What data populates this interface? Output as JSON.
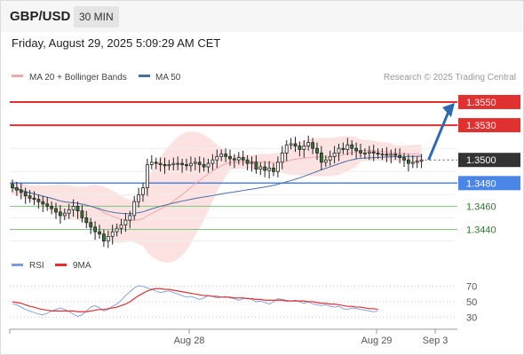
{
  "header": {
    "symbol": "GBP/USD",
    "timeframe": "30 MIN",
    "datetime": "Friday, August 29, 2025 5:09:29 AM CET"
  },
  "legend": {
    "ma20": "MA 20 + Bollinger Bands",
    "ma50": "MA 50",
    "credit": "Research © 2025 Trading Central",
    "rsi": "RSI",
    "rsi_ma": "9MA"
  },
  "colors": {
    "candle_up": "#ffffff",
    "candle_down": "#2f7a2f",
    "ma20": "#f4a7a7",
    "ma50": "#4a6fa5",
    "bollinger_fill": "#fde2e2",
    "resistance": "#e03030",
    "pivot": "#4a86e8",
    "support": "#7bc67b",
    "target_arrow": "#2d6ab4",
    "rsi": "#7a9be0",
    "rsi_ma": "#e03030"
  },
  "chart_data": [
    {
      "type": "candlestick",
      "instrument": "GBP/USD",
      "interval": "30 MIN",
      "ylim": [
        1.3422,
        1.3563
      ],
      "x_ticks": [
        "Aug 28",
        "Aug 29",
        "Sep 3"
      ],
      "price_levels": [
        {
          "value": 1.355,
          "label": "1.3550",
          "kind": "resistance"
        },
        {
          "value": 1.353,
          "label": "1.3530",
          "kind": "resistance"
        },
        {
          "value": 1.35,
          "label": "1.3500",
          "kind": "current"
        },
        {
          "value": 1.348,
          "label": "1.3480",
          "kind": "pivot"
        },
        {
          "value": 1.346,
          "label": "1.3460",
          "kind": "support"
        },
        {
          "value": 1.344,
          "label": "1.3440",
          "kind": "support"
        }
      ],
      "close": [
        1.3476,
        1.3474,
        1.3472,
        1.3469,
        1.3467,
        1.3466,
        1.3464,
        1.3462,
        1.346,
        1.3458,
        1.3455,
        1.3452,
        1.3454,
        1.3457,
        1.346,
        1.3456,
        1.345,
        1.3446,
        1.3442,
        1.3438,
        1.3436,
        1.343,
        1.3434,
        1.3438,
        1.3441,
        1.3444,
        1.3448,
        1.3452,
        1.3464,
        1.347,
        1.3476,
        1.3496,
        1.3498,
        1.3497,
        1.3496,
        1.3495,
        1.3496,
        1.3497,
        1.3497,
        1.3496,
        1.3495,
        1.3497,
        1.3498,
        1.3496,
        1.3494,
        1.3497,
        1.35,
        1.3503,
        1.3505,
        1.3503,
        1.3501,
        1.35,
        1.3502,
        1.35,
        1.3497,
        1.3498,
        1.3492,
        1.3494,
        1.3491,
        1.3493,
        1.349,
        1.3498,
        1.3506,
        1.3513,
        1.3514,
        1.3512,
        1.3509,
        1.3512,
        1.3515,
        1.351,
        1.3506,
        1.3498,
        1.35,
        1.3503,
        1.3506,
        1.351,
        1.3509,
        1.3513,
        1.351,
        1.3508,
        1.3506,
        1.3506,
        1.3507,
        1.3506,
        1.3505,
        1.3505,
        1.3504,
        1.3505,
        1.3504,
        1.3502,
        1.35,
        1.3497,
        1.3498,
        1.3499,
        1.35
      ]
    },
    {
      "type": "line",
      "title": "RSI",
      "ylim": [
        20,
        80
      ],
      "y_ticks": [
        70,
        50,
        30
      ],
      "series": [
        {
          "name": "RSI",
          "values": [
            47,
            46,
            43,
            40,
            38,
            36,
            34,
            33,
            35,
            38,
            40,
            42,
            40,
            37,
            34,
            31,
            33,
            38,
            43,
            45,
            42,
            38,
            40,
            44,
            47,
            52,
            58,
            63,
            68,
            71,
            70,
            68,
            66,
            64,
            62,
            63,
            64,
            62,
            60,
            58,
            56,
            57,
            55,
            53,
            55,
            58,
            57,
            55,
            56,
            57,
            55,
            54,
            52,
            54,
            55,
            53,
            50,
            51,
            49,
            47,
            50,
            54,
            53,
            52,
            51,
            52,
            50,
            48,
            50,
            47,
            46,
            45,
            46,
            44,
            43,
            44,
            41,
            40,
            42,
            41,
            40,
            39,
            38,
            37,
            38
          ]
        },
        {
          "name": "9MA",
          "values": [
            50,
            49,
            48,
            46,
            44,
            43,
            41,
            40,
            39,
            38,
            38,
            38,
            38,
            38,
            38,
            37,
            37,
            37,
            38,
            39,
            40,
            40,
            41,
            42,
            43,
            45,
            47,
            50,
            54,
            58,
            61,
            64,
            66,
            67,
            67,
            66,
            66,
            65,
            64,
            63,
            62,
            61,
            60,
            59,
            58,
            58,
            57,
            57,
            56,
            56,
            56,
            55,
            55,
            55,
            54,
            54,
            53,
            53,
            52,
            52,
            52,
            52,
            52,
            51,
            51,
            51,
            51,
            51,
            50,
            50,
            49,
            48,
            48,
            47,
            47,
            46,
            45,
            44,
            44,
            43,
            43,
            42,
            41,
            41,
            40
          ]
        }
      ]
    }
  ]
}
